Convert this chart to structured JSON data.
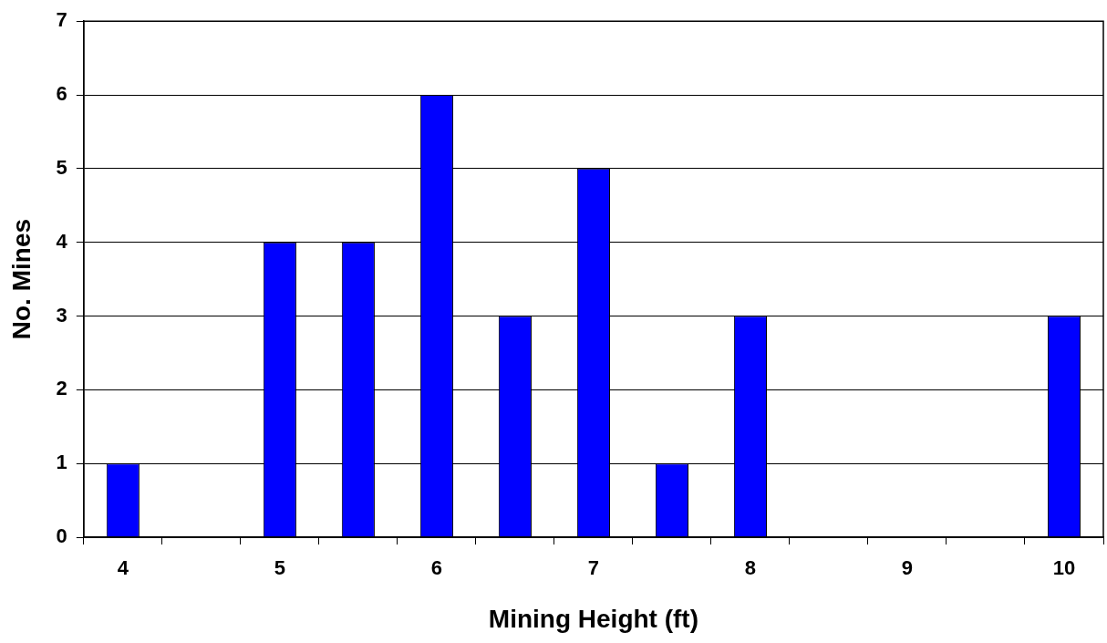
{
  "chart_data": {
    "type": "bar",
    "xlabel": "Mining Height (ft)",
    "ylabel": "No. Mines",
    "categories": [
      "4",
      null,
      "5",
      null,
      "6",
      null,
      "7",
      null,
      "8",
      null,
      "9",
      null,
      "10"
    ],
    "values": [
      1,
      0,
      4,
      4,
      6,
      3,
      5,
      1,
      3,
      0,
      0,
      0,
      3
    ],
    "color": "#0000ff",
    "ylim": [
      0,
      7
    ],
    "yticks": [
      0,
      1,
      2,
      3,
      4,
      5,
      6,
      7
    ],
    "grid": "y",
    "legend": false
  }
}
